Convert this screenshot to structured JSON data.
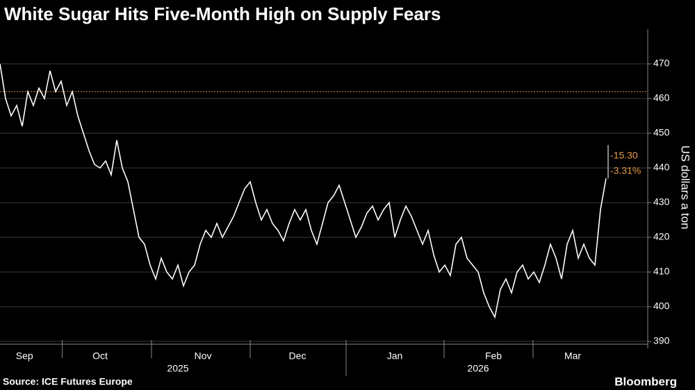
{
  "chart_data": {
    "type": "line",
    "title": "White Sugar Hits Five-Month High on Supply Fears",
    "y_axis_label": "US dollars a ton",
    "source": "Source: ICE Futures Europe",
    "brand": "Bloomberg",
    "series": [
      {
        "name": "White sugar",
        "color": "#ffffff",
        "values": [
          470,
          460,
          455,
          458,
          452,
          462,
          458,
          463,
          460,
          468,
          462,
          465,
          458,
          462,
          455,
          450,
          445,
          441,
          440,
          442,
          438,
          448,
          440,
          436,
          428,
          420,
          418,
          412,
          408,
          414,
          410,
          408,
          412,
          406,
          410,
          412,
          418,
          422,
          420,
          424,
          420,
          423,
          426,
          430,
          434,
          436,
          430,
          425,
          428,
          424,
          422,
          419,
          424,
          428,
          425,
          428,
          422,
          418,
          424,
          430,
          432,
          435,
          430,
          425,
          420,
          423,
          427,
          429,
          425,
          428,
          430,
          420,
          425,
          429,
          426,
          422,
          418,
          422,
          415,
          410,
          412,
          409,
          418,
          420,
          414,
          412,
          410,
          404,
          400,
          397,
          405,
          408,
          404,
          410,
          412,
          408,
          410,
          407,
          412,
          418,
          414,
          408,
          418,
          422,
          414,
          418,
          414,
          412,
          428,
          437
        ]
      }
    ],
    "xticks": [
      {
        "value": 4.4,
        "label": "Sep"
      },
      {
        "value": 18,
        "label": "Oct"
      },
      {
        "value": 36.5,
        "label": "Nov"
      },
      {
        "value": 53.5,
        "label": "Dec"
      },
      {
        "value": 71,
        "label": "Jan"
      },
      {
        "value": 88.75,
        "label": "Feb"
      },
      {
        "value": 103,
        "label": "Mar"
      }
    ],
    "years": [
      {
        "value": 32,
        "label": "2025"
      },
      {
        "value": 86,
        "label": "2026"
      }
    ],
    "xlim": [
      0,
      116.5
    ],
    "ylim": [
      388,
      474
    ],
    "yticks": [
      390,
      400,
      410,
      420,
      430,
      440,
      450,
      460,
      470
    ],
    "reference_line": {
      "value": 462,
      "color": "#e69a4a"
    },
    "annotations": [
      "-15.30",
      "-3.31%"
    ],
    "annotation_color": "#e69a4a"
  }
}
